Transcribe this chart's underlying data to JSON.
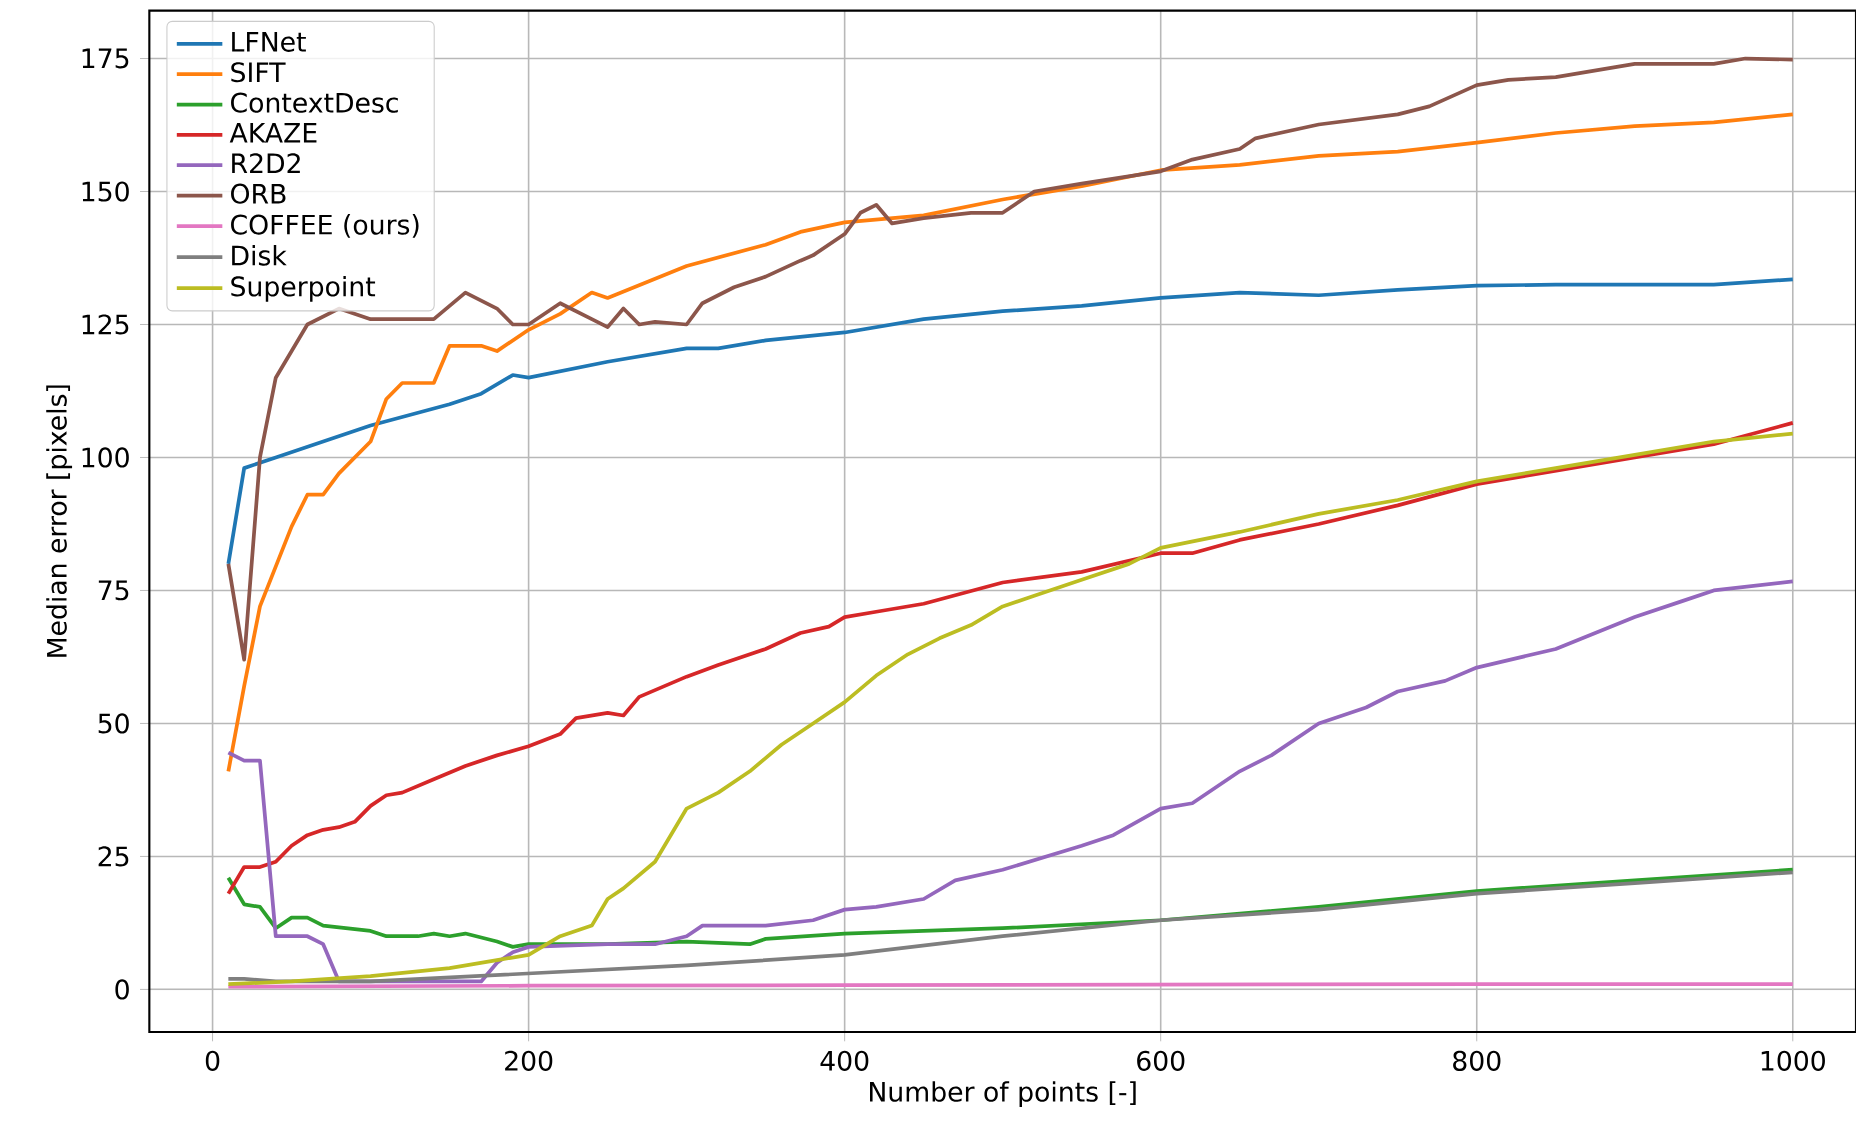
{
  "chart_data": {
    "type": "line",
    "xlabel": "Number of points [-]",
    "ylabel": "Median error [pixels]",
    "xlim": [
      -40,
      1040
    ],
    "ylim": [
      -8,
      184
    ],
    "xticks": [
      0,
      200,
      400,
      600,
      800,
      1000
    ],
    "yticks": [
      0,
      25,
      50,
      75,
      100,
      125,
      150,
      175
    ],
    "grid": true,
    "legend": "top left",
    "series": [
      {
        "name": "LFNet",
        "color": "#1f77b4",
        "x": [
          10,
          20,
          40,
          100,
          150,
          170,
          190,
          200,
          250,
          300,
          320,
          350,
          400,
          450,
          500,
          550,
          600,
          650,
          700,
          750,
          800,
          850,
          900,
          950,
          1000
        ],
        "values": [
          80,
          98,
          100,
          106,
          110,
          112,
          115.5,
          115,
          118,
          120.5,
          120.5,
          122,
          123.5,
          126,
          127.5,
          128.5,
          130,
          131,
          130.5,
          131.5,
          132.3,
          132.5,
          132.5,
          132.5,
          133.5
        ]
      },
      {
        "name": "SIFT",
        "color": "#ff7f0e",
        "x": [
          10,
          20,
          30,
          50,
          60,
          70,
          80,
          100,
          110,
          120,
          140,
          150,
          170,
          180,
          200,
          220,
          240,
          250,
          300,
          350,
          372,
          400,
          450,
          500,
          550,
          600,
          650,
          700,
          750,
          800,
          850,
          900,
          950,
          1000
        ],
        "values": [
          41,
          57,
          72,
          87,
          93,
          93,
          97,
          103,
          111,
          114,
          114,
          121,
          121,
          120,
          124,
          127,
          131,
          130,
          136,
          140,
          142.4,
          144.2,
          145.5,
          148.5,
          151,
          154,
          155,
          156.7,
          157.5,
          159.2,
          161,
          162.3,
          163,
          164.5
        ]
      },
      {
        "name": "ContextDesc",
        "color": "#2ca02c",
        "x": [
          10,
          20,
          30,
          40,
          50,
          60,
          70,
          100,
          110,
          130,
          140,
          150,
          160,
          180,
          190,
          200,
          250,
          300,
          340,
          350,
          400,
          450,
          500,
          600,
          700,
          800,
          900,
          1000
        ],
        "values": [
          21,
          16,
          15.5,
          11.5,
          13.5,
          13.5,
          12,
          11,
          10,
          10,
          10.5,
          10,
          10.5,
          9,
          8,
          8.5,
          8.5,
          9,
          8.5,
          9.5,
          10.5,
          11,
          11.5,
          13,
          15.5,
          18.5,
          20.5,
          22.5
        ]
      },
      {
        "name": "AKAZE",
        "color": "#d62728",
        "x": [
          10,
          20,
          30,
          40,
          50,
          60,
          70,
          80,
          90,
          100,
          110,
          120,
          140,
          160,
          180,
          200,
          220,
          230,
          250,
          260,
          270,
          300,
          320,
          350,
          372,
          390,
          400,
          420,
          450,
          500,
          550,
          600,
          620,
          650,
          700,
          750,
          800,
          850,
          900,
          950,
          1000
        ],
        "values": [
          18,
          23,
          23,
          24,
          27,
          29,
          30,
          30.5,
          31.5,
          34.5,
          36.5,
          37,
          39.5,
          42,
          44,
          45.7,
          48,
          51,
          52,
          51.5,
          55,
          58.8,
          61,
          64,
          67,
          68.2,
          70,
          71,
          72.5,
          76.5,
          78.5,
          82,
          82,
          84.5,
          87.5,
          91,
          95,
          97.5,
          100,
          102.5,
          106.5
        ]
      },
      {
        "name": "R2D2",
        "color": "#9467bd",
        "x": [
          10,
          20,
          30,
          40,
          50,
          60,
          70,
          80,
          100,
          150,
          170,
          180,
          190,
          200,
          250,
          280,
          300,
          310,
          350,
          380,
          400,
          420,
          450,
          470,
          500,
          550,
          570,
          600,
          620,
          650,
          670,
          700,
          730,
          750,
          780,
          800,
          850,
          900,
          930,
          950,
          1000
        ],
        "values": [
          44.5,
          43,
          43,
          10,
          10,
          10,
          8.5,
          1.5,
          1.5,
          1.5,
          1.5,
          5,
          7,
          8,
          8.5,
          8.5,
          10,
          12,
          12,
          13,
          15,
          15.5,
          17,
          20.5,
          22.5,
          27,
          29,
          34,
          35,
          41,
          44,
          50,
          53,
          56,
          58,
          60.5,
          64,
          70,
          73,
          75,
          76.7
        ]
      },
      {
        "name": "ORB",
        "color": "#8c564b",
        "x": [
          10,
          20,
          30,
          40,
          60,
          80,
          100,
          120,
          140,
          160,
          180,
          190,
          200,
          220,
          240,
          250,
          260,
          270,
          280,
          300,
          310,
          330,
          350,
          372,
          380,
          400,
          410,
          420,
          430,
          450,
          480,
          500,
          520,
          550,
          600,
          620,
          650,
          660,
          700,
          750,
          770,
          800,
          820,
          850,
          900,
          950,
          970,
          1000
        ],
        "values": [
          80,
          62,
          100,
          115,
          125,
          128,
          126,
          null,
          126,
          131,
          128,
          125,
          125,
          129,
          126,
          124.5,
          128,
          125,
          125.5,
          125,
          129,
          132,
          134,
          137,
          138,
          142,
          146,
          147.5,
          144,
          145,
          146,
          146,
          150,
          151.5,
          153.8,
          156,
          158,
          160,
          162.6,
          164.5,
          166,
          170,
          171,
          171.5,
          174,
          174,
          175,
          174.8
        ]
      },
      {
        "name": "COFFEE (ours)",
        "color": "#e377c2",
        "x": [
          10,
          200,
          400,
          600,
          800,
          1000
        ],
        "values": [
          0.5,
          0.7,
          0.8,
          0.9,
          1,
          1
        ]
      },
      {
        "name": "Disk",
        "color": "#7f7f7f",
        "x": [
          10,
          20,
          40,
          100,
          200,
          300,
          400,
          500,
          600,
          700,
          800,
          900,
          1000
        ],
        "values": [
          2,
          2,
          1.5,
          1.5,
          3,
          4.5,
          6.5,
          10,
          13,
          15,
          18,
          20,
          22
        ]
      },
      {
        "name": "Superpoint",
        "color": "#bcbd22",
        "x": [
          10,
          50,
          100,
          150,
          180,
          200,
          220,
          240,
          250,
          260,
          280,
          300,
          320,
          340,
          360,
          380,
          400,
          420,
          440,
          460,
          480,
          500,
          520,
          550,
          580,
          600,
          650,
          700,
          750,
          800,
          850,
          900,
          950,
          1000
        ],
        "values": [
          1,
          1.5,
          2.5,
          4,
          5.5,
          6.5,
          10,
          12,
          17,
          19,
          24,
          34,
          37,
          41,
          46,
          50,
          54,
          59,
          63,
          66,
          68.5,
          72,
          74,
          77,
          80,
          83,
          86,
          89.4,
          92,
          95.5,
          98,
          100.5,
          103,
          104.5
        ]
      }
    ]
  }
}
